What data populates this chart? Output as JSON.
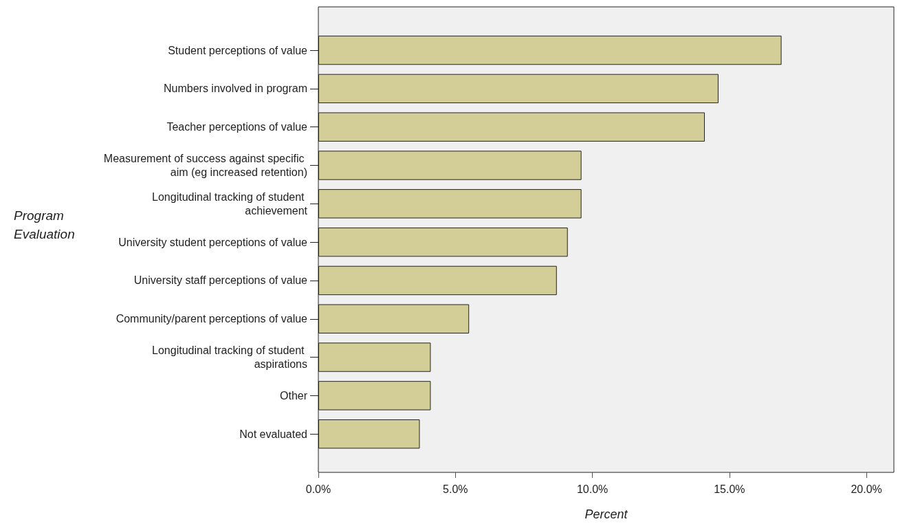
{
  "chart_data": {
    "type": "bar",
    "orientation": "horizontal",
    "xlabel": "Percent",
    "ylabel": "Program Evaluation",
    "categories": [
      "Student perceptions of value",
      "Numbers involved in program",
      "Teacher perceptions of value",
      "Measurement of success against specific aim (eg increased retention)",
      "Longitudinal tracking of student achievement",
      "University student perceptions of value",
      "University staff perceptions of value",
      "Community/parent perceptions of value",
      "Longitudinal tracking of student aspirations",
      "Other",
      "Not evaluated"
    ],
    "values": [
      16.9,
      14.6,
      14.1,
      9.6,
      9.6,
      9.1,
      8.7,
      5.5,
      4.1,
      4.1,
      3.7
    ],
    "color": "#d3cd97",
    "xlim": [
      0,
      21
    ],
    "xticks": [
      {
        "value": 0,
        "label": "0.0%"
      },
      {
        "value": 5,
        "label": "5.0%"
      },
      {
        "value": 10,
        "label": "10.0%"
      },
      {
        "value": 15,
        "label": "15.0%"
      },
      {
        "value": 20,
        "label": "20.0%"
      }
    ],
    "grid": false
  }
}
